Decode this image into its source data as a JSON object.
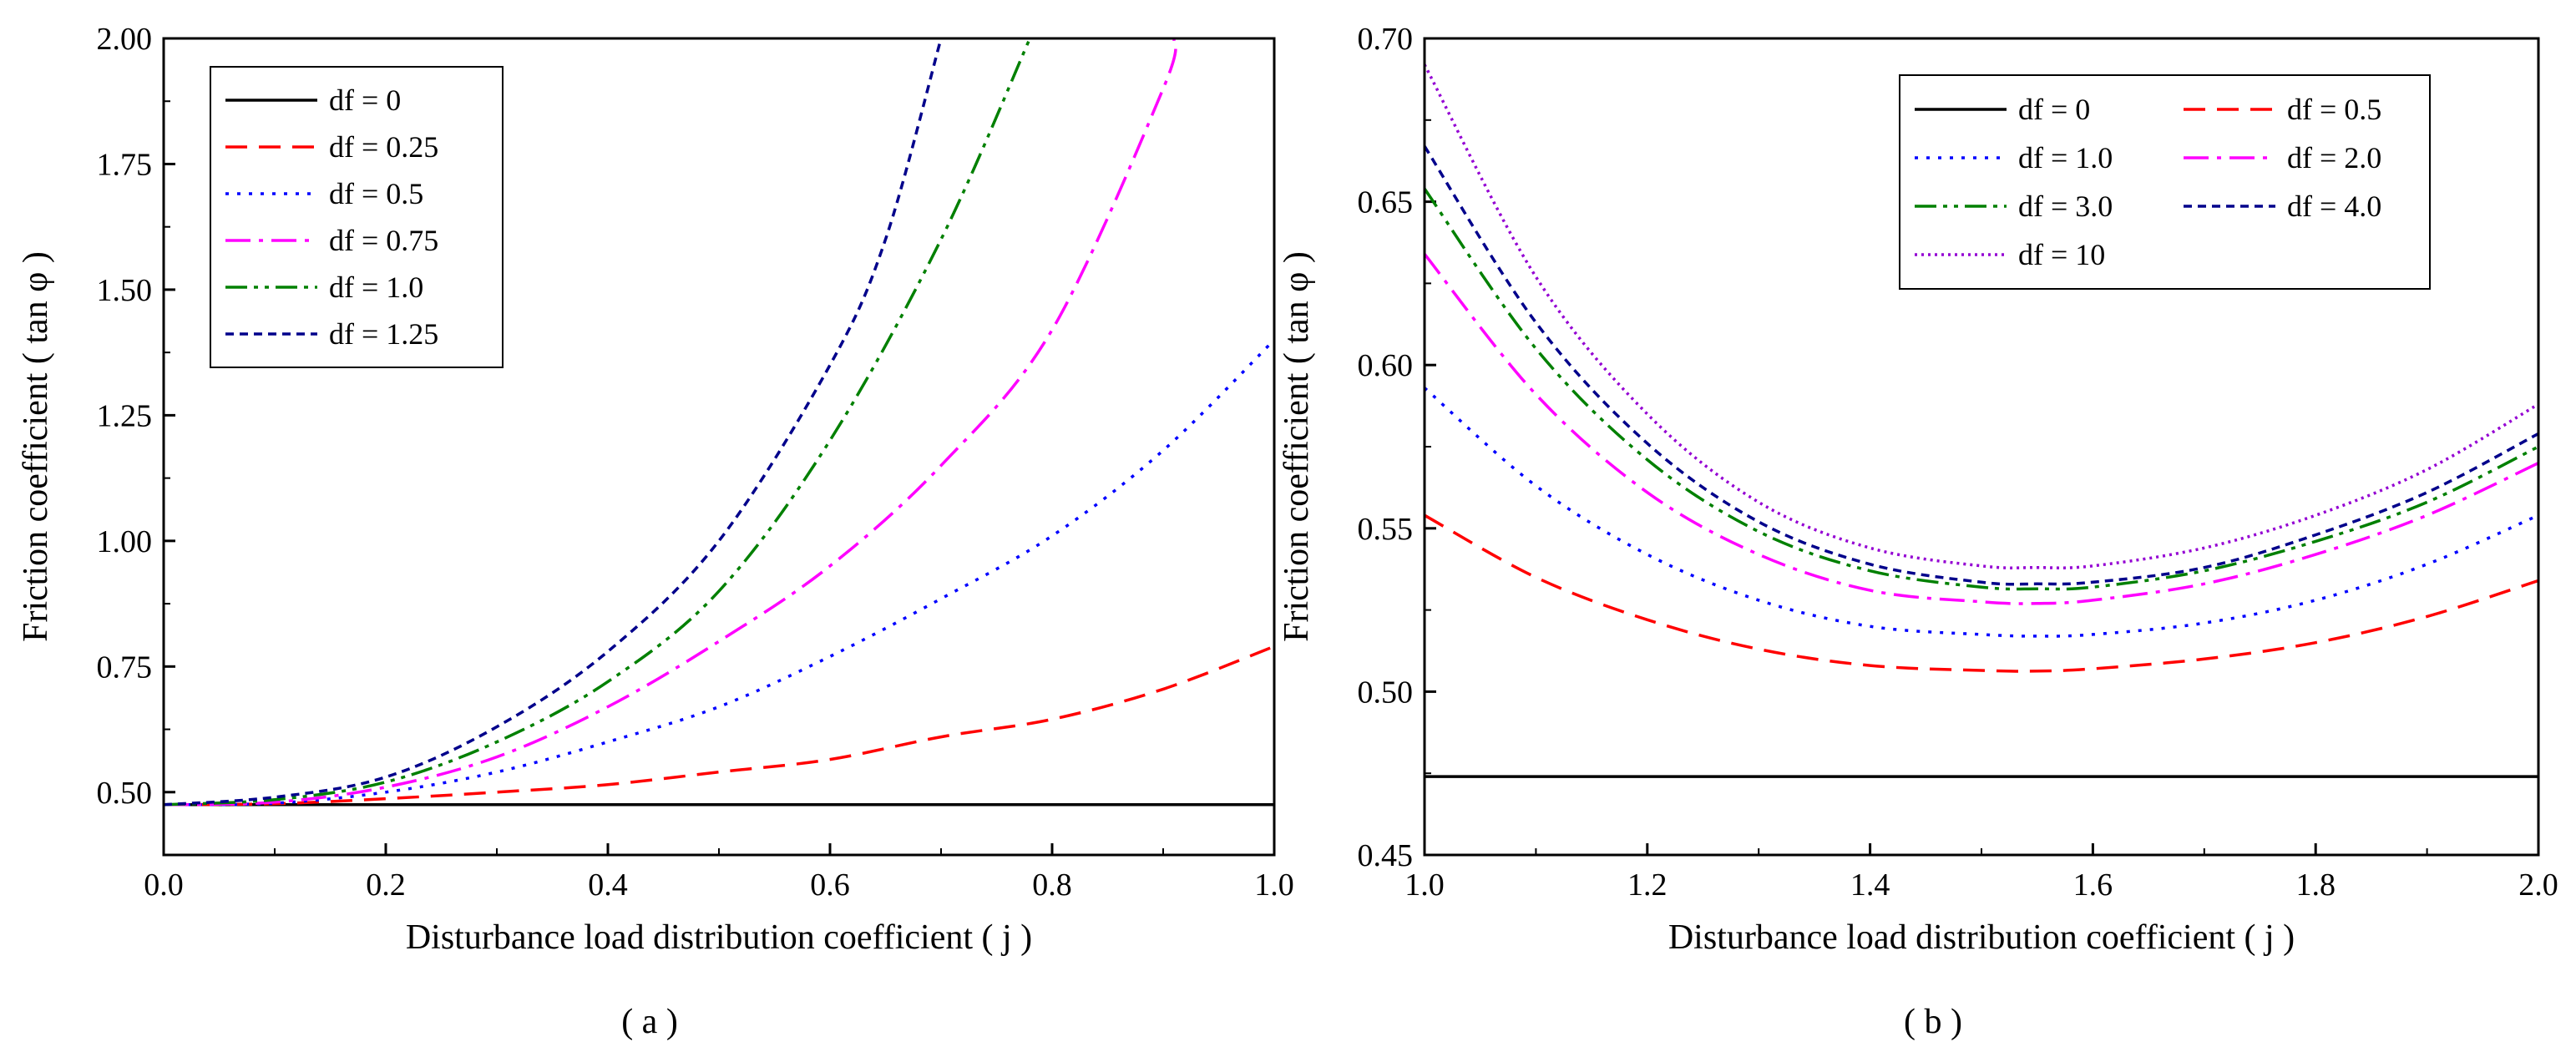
{
  "chart_data": [
    {
      "panel": "(a)",
      "type": "line",
      "caption": "( a )",
      "xlabel": "Disturbance load distribution coefficient ( j )",
      "ylabel": "Friction coefficient ( tan φ )",
      "xlim": [
        0.0,
        1.0
      ],
      "ylim": [
        0.375,
        2.0
      ],
      "xticks": [
        "0.0",
        "0.2",
        "0.4",
        "0.6",
        "0.8",
        "1.0"
      ],
      "yticks": [
        "0.50",
        "0.75",
        "1.00",
        "1.25",
        "1.50",
        "1.75",
        "2.00"
      ],
      "legend_position": "top-left",
      "series": [
        {
          "name": "df = 0",
          "color": "#000000",
          "dash": "solid",
          "x": [
            0.0,
            0.2,
            0.4,
            0.6,
            0.8,
            1.0
          ],
          "y": [
            0.475,
            0.475,
            0.475,
            0.475,
            0.475,
            0.475
          ]
        },
        {
          "name": "df = 0.25",
          "color": "#ff0000",
          "dash": "dash",
          "x": [
            0.0,
            0.1,
            0.2,
            0.3,
            0.4,
            0.5,
            0.6,
            0.7,
            0.8,
            0.9,
            1.0
          ],
          "y": [
            0.475,
            0.477,
            0.487,
            0.5,
            0.515,
            0.54,
            0.565,
            0.61,
            0.645,
            0.705,
            0.79
          ]
        },
        {
          "name": "df = 0.5",
          "color": "#0000ff",
          "dash": "dot",
          "x": [
            0.0,
            0.1,
            0.2,
            0.3,
            0.4,
            0.5,
            0.6,
            0.7,
            0.8,
            0.9,
            1.0
          ],
          "y": [
            0.475,
            0.478,
            0.5,
            0.54,
            0.6,
            0.67,
            0.77,
            0.885,
            1.01,
            1.18,
            1.4
          ]
        },
        {
          "name": "df = 0.75",
          "color": "#ff00ff",
          "dash": "dashdot",
          "x": [
            0.0,
            0.1,
            0.2,
            0.3,
            0.4,
            0.5,
            0.6,
            0.7,
            0.8,
            0.9,
            0.91
          ],
          "y": [
            0.475,
            0.48,
            0.51,
            0.57,
            0.67,
            0.8,
            0.95,
            1.15,
            1.42,
            1.9,
            2.0
          ]
        },
        {
          "name": "df = 1.0",
          "color": "#008000",
          "dash": "dashdotdot",
          "x": [
            0.0,
            0.1,
            0.2,
            0.3,
            0.4,
            0.5,
            0.6,
            0.7,
            0.78
          ],
          "y": [
            0.475,
            0.485,
            0.52,
            0.6,
            0.72,
            0.9,
            1.2,
            1.6,
            2.0
          ]
        },
        {
          "name": "df = 1.25",
          "color": "#00008b",
          "dash": "shortdash",
          "x": [
            0.0,
            0.1,
            0.2,
            0.3,
            0.4,
            0.5,
            0.6,
            0.65,
            0.7
          ],
          "y": [
            0.475,
            0.49,
            0.53,
            0.63,
            0.78,
            1.0,
            1.35,
            1.6,
            2.0
          ]
        }
      ]
    },
    {
      "panel": "(b)",
      "type": "line",
      "caption": "( b )",
      "xlabel": "Disturbance load distribution coefficient ( j )",
      "ylabel": "Friction coefficient ( tan φ )",
      "xlim": [
        1.0,
        2.0
      ],
      "ylim": [
        0.45,
        0.7
      ],
      "xticks": [
        "1.0",
        "1.2",
        "1.4",
        "1.6",
        "1.8",
        "2.0"
      ],
      "yticks": [
        "0.45",
        "0.50",
        "0.55",
        "0.60",
        "0.65",
        "0.70"
      ],
      "legend_position": "top-right",
      "series": [
        {
          "name": "df = 0",
          "color": "#000000",
          "dash": "solid",
          "x": [
            1.0,
            1.2,
            1.4,
            1.6,
            1.8,
            2.0
          ],
          "y": [
            0.474,
            0.474,
            0.474,
            0.474,
            0.474,
            0.474
          ]
        },
        {
          "name": "df = 0.5",
          "color": "#ff0000",
          "dash": "dash",
          "x": [
            1.0,
            1.1,
            1.2,
            1.3,
            1.4,
            1.5,
            1.55,
            1.6,
            1.7,
            1.8,
            1.9,
            2.0
          ],
          "y": [
            0.554,
            0.535,
            0.522,
            0.513,
            0.508,
            0.5065,
            0.5063,
            0.507,
            0.51,
            0.515,
            0.523,
            0.534
          ]
        },
        {
          "name": "df = 1.0",
          "color": "#0000ff",
          "dash": "dot",
          "x": [
            1.0,
            1.1,
            1.2,
            1.3,
            1.4,
            1.5,
            1.55,
            1.6,
            1.7,
            1.8,
            1.9,
            2.0
          ],
          "y": [
            0.593,
            0.563,
            0.542,
            0.528,
            0.52,
            0.5175,
            0.517,
            0.5175,
            0.521,
            0.528,
            0.539,
            0.554
          ]
        },
        {
          "name": "df = 2.0",
          "color": "#ff00ff",
          "dash": "dashdot",
          "x": [
            1.0,
            1.1,
            1.2,
            1.3,
            1.4,
            1.5,
            1.55,
            1.6,
            1.7,
            1.8,
            1.9,
            2.0
          ],
          "y": [
            0.634,
            0.591,
            0.561,
            0.542,
            0.531,
            0.5275,
            0.527,
            0.528,
            0.533,
            0.542,
            0.554,
            0.57
          ]
        },
        {
          "name": "df = 3.0",
          "color": "#008000",
          "dash": "dashdotdot",
          "x": [
            1.0,
            1.1,
            1.2,
            1.3,
            1.4,
            1.5,
            1.55,
            1.6,
            1.7,
            1.8,
            1.9,
            2.0
          ],
          "y": [
            0.654,
            0.605,
            0.571,
            0.549,
            0.537,
            0.532,
            0.5315,
            0.532,
            0.537,
            0.546,
            0.558,
            0.575
          ]
        },
        {
          "name": "df = 4.0",
          "color": "#00008b",
          "dash": "shortdash",
          "x": [
            1.0,
            1.1,
            1.2,
            1.3,
            1.4,
            1.5,
            1.55,
            1.6,
            1.7,
            1.8,
            1.9,
            2.0
          ],
          "y": [
            0.667,
            0.613,
            0.576,
            0.552,
            0.539,
            0.5335,
            0.533,
            0.5335,
            0.538,
            0.548,
            0.561,
            0.579
          ]
        },
        {
          "name": "df = 10",
          "color": "#9400d3",
          "dash": "fine-dot",
          "x": [
            1.0,
            1.1,
            1.2,
            1.3,
            1.4,
            1.5,
            1.55,
            1.6,
            1.7,
            1.8,
            1.9,
            2.0
          ],
          "y": [
            0.692,
            0.627,
            0.585,
            0.558,
            0.544,
            0.5385,
            0.538,
            0.5385,
            0.544,
            0.554,
            0.568,
            0.588
          ]
        }
      ]
    }
  ]
}
